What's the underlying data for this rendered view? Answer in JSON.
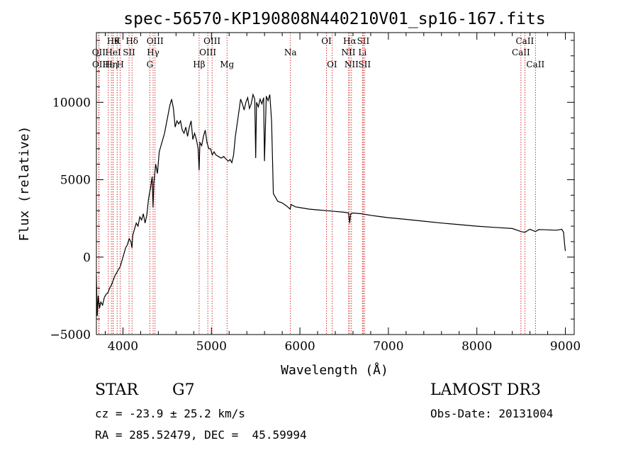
{
  "chart_data": {
    "type": "line",
    "title": "spec-56570-KP190808N440210V01_sp16-167.fits",
    "xlabel": "Wavelength (Å)",
    "ylabel": "Flux (relative)",
    "xlim": [
      3700,
      9100
    ],
    "ylim": [
      -5000,
      14500
    ],
    "xticks": [
      4000,
      5000,
      6000,
      7000,
      8000,
      9000
    ],
    "yticks": [
      -5000,
      0,
      5000,
      10000
    ],
    "series": [
      {
        "x": [
          3700,
          3710,
          3720,
          3735,
          3750,
          3770,
          3790,
          3810,
          3830,
          3850,
          3870,
          3890,
          3910,
          3930,
          3950,
          3970,
          3990,
          4010,
          4030,
          4050,
          4070,
          4090,
          4102,
          4110,
          4130,
          4150,
          4170,
          4190,
          4210,
          4230,
          4250,
          4270,
          4290,
          4310,
          4330,
          4340,
          4350,
          4370,
          4390,
          4410,
          4430,
          4450,
          4470,
          4490,
          4510,
          4530,
          4550,
          4570,
          4590,
          4610,
          4630,
          4650,
          4670,
          4690,
          4710,
          4730,
          4750,
          4770,
          4790,
          4810,
          4830,
          4850,
          4861,
          4870,
          4890,
          4910,
          4930,
          4950,
          4970,
          4990,
          5010,
          5030,
          5050,
          5080,
          5110,
          5140,
          5170,
          5190,
          5210,
          5230,
          5250,
          5270,
          5290,
          5310,
          5330,
          5350,
          5370,
          5390,
          5410,
          5430,
          5450,
          5470,
          5490,
          5500,
          5510,
          5530,
          5550,
          5570,
          5590,
          5600,
          5620,
          5640,
          5660,
          5680,
          5700,
          5750,
          5800,
          5850,
          5890,
          5900,
          5950,
          6000,
          6100,
          6200,
          6300,
          6400,
          6500,
          6550,
          6563,
          6575,
          6600,
          6700,
          6800,
          6900,
          7000,
          7200,
          7400,
          7600,
          7800,
          8000,
          8200,
          8400,
          8498,
          8542,
          8600,
          8662,
          8700,
          8800,
          8900,
          8960,
          8980,
          8990,
          9000
        ],
        "values": [
          -1200,
          -3800,
          -2500,
          -3300,
          -2900,
          -3100,
          -2600,
          -2400,
          -2300,
          -2000,
          -1800,
          -1500,
          -1200,
          -1000,
          -800,
          -600,
          -200,
          200,
          600,
          800,
          1200,
          1000,
          600,
          1400,
          1800,
          2200,
          2000,
          2600,
          2400,
          2800,
          2200,
          2700,
          3800,
          4400,
          5200,
          3200,
          4800,
          6000,
          5400,
          6800,
          7200,
          7600,
          8000,
          8600,
          9200,
          9800,
          10200,
          9600,
          8400,
          8800,
          8600,
          8800,
          8200,
          8000,
          8400,
          7800,
          8400,
          8800,
          7600,
          8000,
          7600,
          7000,
          5600,
          7400,
          7200,
          7800,
          8200,
          7400,
          7000,
          7000,
          6600,
          6800,
          6600,
          6500,
          6400,
          6500,
          6300,
          6200,
          6300,
          6100,
          6600,
          7800,
          8600,
          9400,
          10200,
          9900,
          9500,
          10000,
          10300,
          9600,
          9900,
          10500,
          10200,
          6400,
          10000,
          9700,
          10200,
          9900,
          10300,
          6200,
          10400,
          10100,
          10500,
          8800,
          4100,
          3600,
          3500,
          3300,
          3100,
          3400,
          3250,
          3200,
          3100,
          3050,
          3000,
          2950,
          2900,
          2850,
          2200,
          2800,
          2850,
          2800,
          2700,
          2620,
          2550,
          2440,
          2320,
          2200,
          2100,
          2000,
          1920,
          1850,
          1650,
          1600,
          1800,
          1650,
          1780,
          1760,
          1740,
          1800,
          1600,
          900,
          400
        ]
      }
    ],
    "lines": [
      {
        "x": 3727,
        "label": "OII",
        "row": 2
      },
      {
        "x": 3729,
        "label": "OII",
        "row": 3
      },
      {
        "x": 3835,
        "label": "Hε",
        "row": 3
      },
      {
        "x": 3869,
        "label": "Hη",
        "row": 3
      },
      {
        "x": 3889,
        "label": "Hθ",
        "row": 1
      },
      {
        "x": 3889,
        "label": "HeI",
        "row": 2
      },
      {
        "x": 3934,
        "label": "K",
        "row": 1
      },
      {
        "x": 3969,
        "label": "H",
        "row": 3
      },
      {
        "x": 4069,
        "label": "SII",
        "row": 2
      },
      {
        "x": 4102,
        "label": "Hδ",
        "row": 1
      },
      {
        "x": 4304,
        "label": "G",
        "row": 3
      },
      {
        "x": 4341,
        "label": "Hγ",
        "row": 2
      },
      {
        "x": 4363,
        "label": "OIII",
        "row": 1
      },
      {
        "x": 4861,
        "label": "Hβ",
        "row": 3
      },
      {
        "x": 4959,
        "label": "OIII",
        "row": 2
      },
      {
        "x": 5007,
        "label": "OIII",
        "row": 1
      },
      {
        "x": 5176,
        "label": "Mg",
        "row": 3
      },
      {
        "x": 5893,
        "label": "Na",
        "row": 2
      },
      {
        "x": 6300,
        "label": "OI",
        "row": 1
      },
      {
        "x": 6363,
        "label": "OI",
        "row": 3
      },
      {
        "x": 6548,
        "label": "NII",
        "row": 2
      },
      {
        "x": 6563,
        "label": "Hα",
        "row": 1
      },
      {
        "x": 6583,
        "label": "NII",
        "row": 3
      },
      {
        "x": 6707,
        "label": "Li",
        "row": 2
      },
      {
        "x": 6716,
        "label": "SII",
        "row": 1
      },
      {
        "x": 6731,
        "label": "SII",
        "row": 3
      },
      {
        "x": 8498,
        "label": "CaII",
        "row": 2
      },
      {
        "x": 8542,
        "label": "CaII",
        "row": 1
      },
      {
        "x": 8662,
        "label": "CaII",
        "row": 3
      }
    ],
    "colors": {
      "spectrum": "#000000",
      "line_marker": "#cc0000"
    },
    "grid": false,
    "legend": "none"
  },
  "info": {
    "object_class": "STAR",
    "subclass": "G7",
    "redshift": "cz = -23.9 ± 25.2 km/s",
    "coords": "RA = 285.52479, DEC =  45.59994",
    "survey": "LAMOST DR3",
    "obs_date": "Obs-Date: 20131004"
  }
}
